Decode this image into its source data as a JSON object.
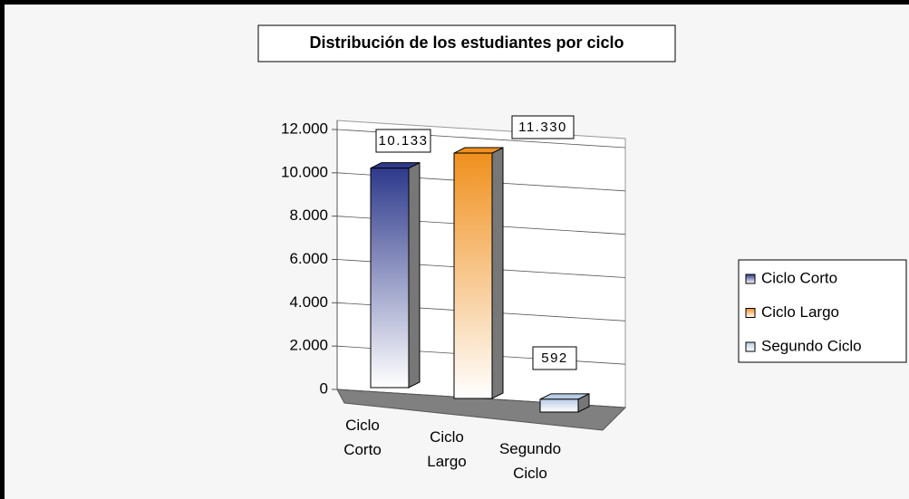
{
  "chart_data": {
    "type": "bar3d",
    "title": "Distribución de los estudiantes por ciclo",
    "categories": [
      "Ciclo Corto",
      "Ciclo Largo",
      "Segundo Ciclo"
    ],
    "values": [
      10133,
      11330,
      592
    ],
    "value_labels": [
      "10.133",
      "11.330",
      "592"
    ],
    "colors": [
      "#2e3a8c",
      "#f0901e",
      "#b8cce4"
    ],
    "ylim": [
      0,
      12000
    ],
    "yticks": [
      0,
      {
        "value": 2000,
        "label": "2.000"
      },
      {
        "value": 4000,
        "label": "4.000"
      },
      {
        "value": 6000,
        "label": "6.000"
      },
      {
        "value": 8000,
        "label": "8.000"
      },
      {
        "value": 10000,
        "label": "10.000"
      },
      {
        "value": 12000,
        "label": "12.000"
      }
    ],
    "grid": true,
    "legend": "right"
  }
}
